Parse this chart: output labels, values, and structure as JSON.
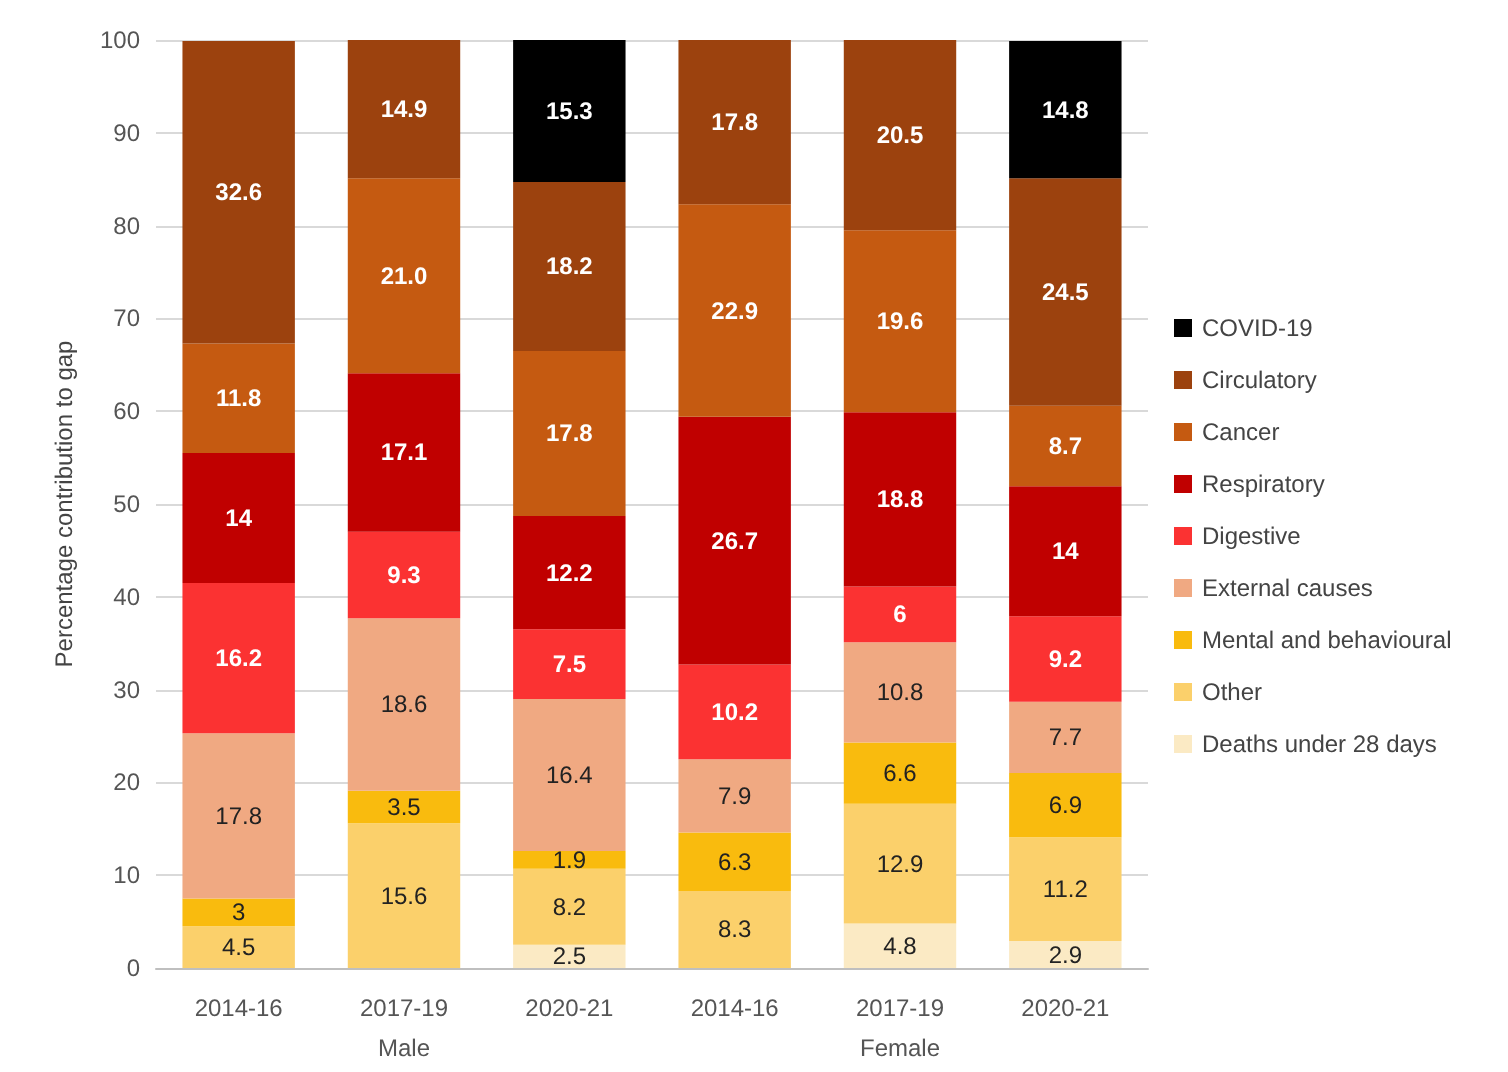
{
  "chart_data": {
    "type": "bar",
    "stacked": true,
    "ylabel": "Percentage contribution to gap",
    "categories": [
      "2014-16",
      "2017-19",
      "2020-21",
      "2014-16",
      "2017-19",
      "2020-21"
    ],
    "annotations": [
      "Male",
      "Female"
    ],
    "series": [
      {
        "name": "Deaths under 28 days",
        "color": "#fbeac4",
        "values": [
          null,
          null,
          2.5,
          null,
          4.8,
          2.9
        ],
        "value_labels": [
          null,
          null,
          "2.5",
          null,
          "4.8",
          "2.9"
        ]
      },
      {
        "name": "Other",
        "color": "#fbd06b",
        "values": [
          4.5,
          15.6,
          8.2,
          8.3,
          12.9,
          11.2
        ],
        "value_labels": [
          "4.5",
          "15.6",
          "8.2",
          "8.3",
          "12.9",
          "11.2"
        ]
      },
      {
        "name": "Mental and behavioural",
        "color": "#f9bb0e",
        "values": [
          3,
          3.5,
          1.9,
          6.3,
          6.6,
          6.9
        ],
        "value_labels": [
          "3",
          "3.5",
          "1.9",
          "6.3",
          "6.6",
          "6.9"
        ]
      },
      {
        "name": "External causes",
        "color": "#f0a982",
        "values": [
          17.8,
          18.6,
          16.4,
          7.9,
          10.8,
          7.7
        ],
        "value_labels": [
          "17.8",
          "18.6",
          "16.4",
          "7.9",
          "10.8",
          "7.7"
        ]
      },
      {
        "name": "Digestive",
        "color": "#fb3232",
        "values": [
          16.2,
          9.3,
          7.5,
          10.2,
          6,
          9.2
        ],
        "value_labels": [
          "16.2",
          "9.3",
          "7.5",
          "10.2",
          "6",
          "9.2"
        ]
      },
      {
        "name": "Respiratory",
        "color": "#c00000",
        "values": [
          14,
          17.1,
          12.2,
          26.7,
          18.8,
          14
        ],
        "value_labels": [
          "14",
          "17.1",
          "12.2",
          "26.7",
          "18.8",
          "14"
        ]
      },
      {
        "name": "Cancer",
        "color": "#c55a11",
        "values": [
          11.8,
          21.0,
          17.8,
          22.9,
          19.6,
          8.7
        ],
        "value_labels": [
          "11.8",
          "21.0",
          "17.8",
          "22.9",
          "19.6",
          "8.7"
        ]
      },
      {
        "name": "Circulatory",
        "color": "#9c420e",
        "values": [
          32.6,
          14.9,
          18.2,
          17.8,
          20.5,
          24.5
        ],
        "value_labels": [
          "32.6",
          "14.9",
          "18.2",
          "17.8",
          "20.5",
          "24.5"
        ]
      },
      {
        "name": "COVID-19",
        "color": "#000000",
        "values": [
          null,
          null,
          15.3,
          null,
          null,
          14.8
        ],
        "value_labels": [
          null,
          null,
          "15.3",
          null,
          null,
          "14.8"
        ]
      }
    ],
    "ylim": [
      0,
      100
    ],
    "yticks": [
      0,
      10,
      20,
      30,
      40,
      50,
      60,
      70,
      80,
      90,
      100
    ],
    "grid": "y",
    "legend": "right"
  }
}
